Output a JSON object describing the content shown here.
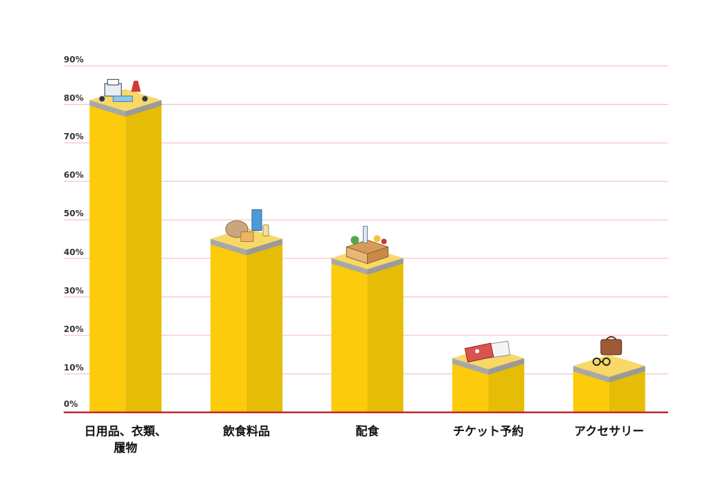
{
  "chart_data": {
    "type": "bar",
    "title": "",
    "xlabel": "",
    "ylabel": "",
    "ylim": [
      0,
      90
    ],
    "y_ticks": [
      "0%",
      "10%",
      "20%",
      "30%",
      "40%",
      "50%",
      "60%",
      "70%",
      "80%",
      "90%"
    ],
    "categories": [
      [
        "日用品、衣類、",
        "履物"
      ],
      [
        "飲食料品"
      ],
      [
        "配食"
      ],
      [
        "チケット予約"
      ],
      [
        "アクセサリー"
      ]
    ],
    "values": [
      80,
      44,
      39,
      13,
      11
    ],
    "icons": [
      "household-goods-icon",
      "food-products-icon",
      "grocery-box-icon",
      "ticket-icon",
      "accessories-icon"
    ],
    "grid": true,
    "legend": "none"
  },
  "colors": {
    "bar_light": "#FCCB0B",
    "bar_dark": "#E6BD06",
    "cap_top": "#F8D867",
    "cap_rim": "#9A9A9A",
    "gridline": "#F2B7B7",
    "baseline": "#C0262B"
  }
}
